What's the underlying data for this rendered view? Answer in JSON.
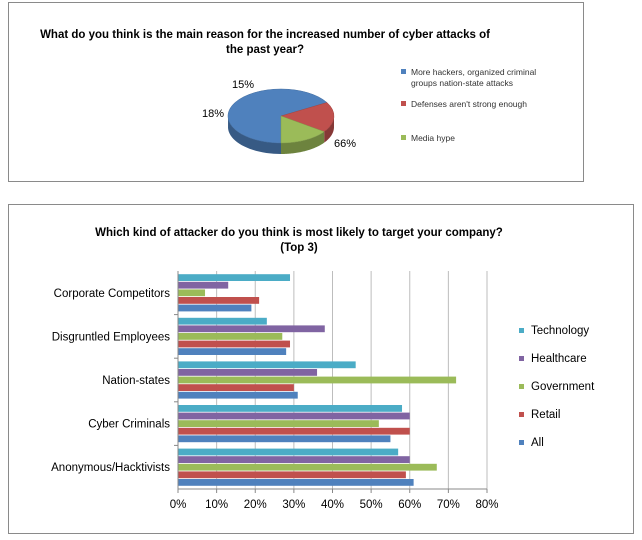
{
  "chart_data": [
    {
      "type": "pie",
      "title": "What do you think is the main reason for the increased number of cyber attacks of the past year?",
      "title_lines": [
        "What do you think is the main reason for the increased number of cyber attacks of",
        "the past year?"
      ],
      "slices": [
        {
          "label": "More hackers, organized criminal groups nation-state attacks",
          "label_lines": [
            "More hackers, organized criminal",
            "groups nation-state attacks"
          ],
          "value": 66,
          "value_label": "66%",
          "color": "#4f81bd"
        },
        {
          "label": "Defenses aren't strong enough",
          "label_lines": [
            "Defenses aren't strong enough"
          ],
          "value": 18,
          "value_label": "18%",
          "color": "#c0504d"
        },
        {
          "label": "Media hype",
          "label_lines": [
            "Media hype"
          ],
          "value": 15,
          "value_label": "15%",
          "color": "#9bbb59"
        }
      ],
      "legend_position": "right"
    },
    {
      "type": "bar",
      "orientation": "horizontal",
      "title": "Which kind of attacker do you think is most likely to target your company? (Top 3)",
      "title_lines": [
        "Which kind of attacker do you think is most likely to target your company?",
        "(Top 3)"
      ],
      "categories": [
        "Corporate Competitors",
        "Disgruntled Employees",
        "Nation-states",
        "Cyber Criminals",
        "Anonymous/Hacktivists"
      ],
      "series": [
        {
          "name": "Technology",
          "color": "#4bacc6",
          "values": [
            29,
            23,
            46,
            58,
            57
          ]
        },
        {
          "name": "Healthcare",
          "color": "#8064a2",
          "values": [
            13,
            38,
            36,
            60,
            60
          ]
        },
        {
          "name": "Government",
          "color": "#9bbb59",
          "values": [
            7,
            27,
            72,
            52,
            67
          ]
        },
        {
          "name": "Retail",
          "color": "#c0504d",
          "values": [
            21,
            29,
            30,
            60,
            59
          ]
        },
        {
          "name": "All",
          "color": "#4f81bd",
          "values": [
            19,
            28,
            31,
            55,
            61
          ]
        }
      ],
      "xlim": [
        0,
        80
      ],
      "x_ticks": [
        "0%",
        "10%",
        "20%",
        "30%",
        "40%",
        "50%",
        "60%",
        "70%",
        "80%"
      ],
      "grid": true,
      "legend_position": "right"
    }
  ]
}
